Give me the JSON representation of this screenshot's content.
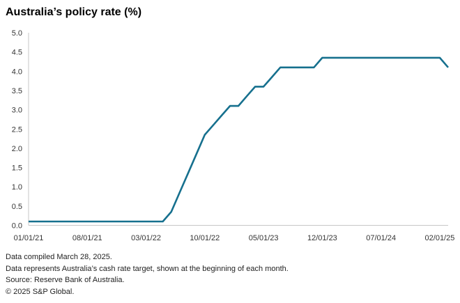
{
  "header": {
    "title": "Australia’s policy rate (%)"
  },
  "footer": {
    "compiled": "Data compiled March 28, 2025.",
    "note": "Data represents Australia’s cash rate target, shown at the beginning of each month.",
    "source": "Source: Reserve Bank of Australia.",
    "copyright": "© 2025 S&P Global."
  },
  "chart_data": {
    "type": "line",
    "title": "Australia’s policy rate (%)",
    "xlabel": "",
    "ylabel": "",
    "ylim": [
      0,
      5
    ],
    "grid": false,
    "legend": false,
    "line_color": "#16708e",
    "axis_color": "#c7c7c7",
    "tick_label_color": "#333333",
    "x": [
      "01/01/21",
      "02/01/21",
      "03/01/21",
      "04/01/21",
      "05/01/21",
      "06/01/21",
      "07/01/21",
      "08/01/21",
      "09/01/21",
      "10/01/21",
      "11/01/21",
      "12/01/21",
      "01/01/22",
      "02/01/22",
      "03/01/22",
      "04/01/22",
      "05/01/22",
      "06/01/22",
      "07/01/22",
      "08/01/22",
      "09/01/22",
      "10/01/22",
      "11/01/22",
      "12/01/22",
      "01/01/23",
      "02/01/23",
      "03/01/23",
      "04/01/23",
      "05/01/23",
      "06/01/23",
      "07/01/23",
      "08/01/23",
      "09/01/23",
      "10/01/23",
      "11/01/23",
      "12/01/23",
      "01/01/24",
      "02/01/24",
      "03/01/24",
      "04/01/24",
      "05/01/24",
      "06/01/24",
      "07/01/24",
      "08/01/24",
      "09/01/24",
      "10/01/24",
      "11/01/24",
      "12/01/24",
      "01/01/25",
      "02/01/25",
      "03/01/25"
    ],
    "values": [
      0.1,
      0.1,
      0.1,
      0.1,
      0.1,
      0.1,
      0.1,
      0.1,
      0.1,
      0.1,
      0.1,
      0.1,
      0.1,
      0.1,
      0.1,
      0.1,
      0.1,
      0.35,
      0.85,
      1.35,
      1.85,
      2.35,
      2.6,
      2.85,
      3.1,
      3.1,
      3.35,
      3.6,
      3.6,
      3.85,
      4.1,
      4.1,
      4.1,
      4.1,
      4.1,
      4.35,
      4.35,
      4.35,
      4.35,
      4.35,
      4.35,
      4.35,
      4.35,
      4.35,
      4.35,
      4.35,
      4.35,
      4.35,
      4.35,
      4.35,
      4.1
    ],
    "x_tick_labels": [
      "01/01/21",
      "08/01/21",
      "03/01/22",
      "10/01/22",
      "05/01/23",
      "12/01/23",
      "07/01/24",
      "02/01/25"
    ],
    "x_tick_indices": [
      0,
      7,
      14,
      21,
      28,
      35,
      42,
      49
    ],
    "y_ticks": [
      0,
      0.5,
      1,
      1.5,
      2,
      2.5,
      3,
      3.5,
      4,
      4.5,
      5
    ]
  }
}
